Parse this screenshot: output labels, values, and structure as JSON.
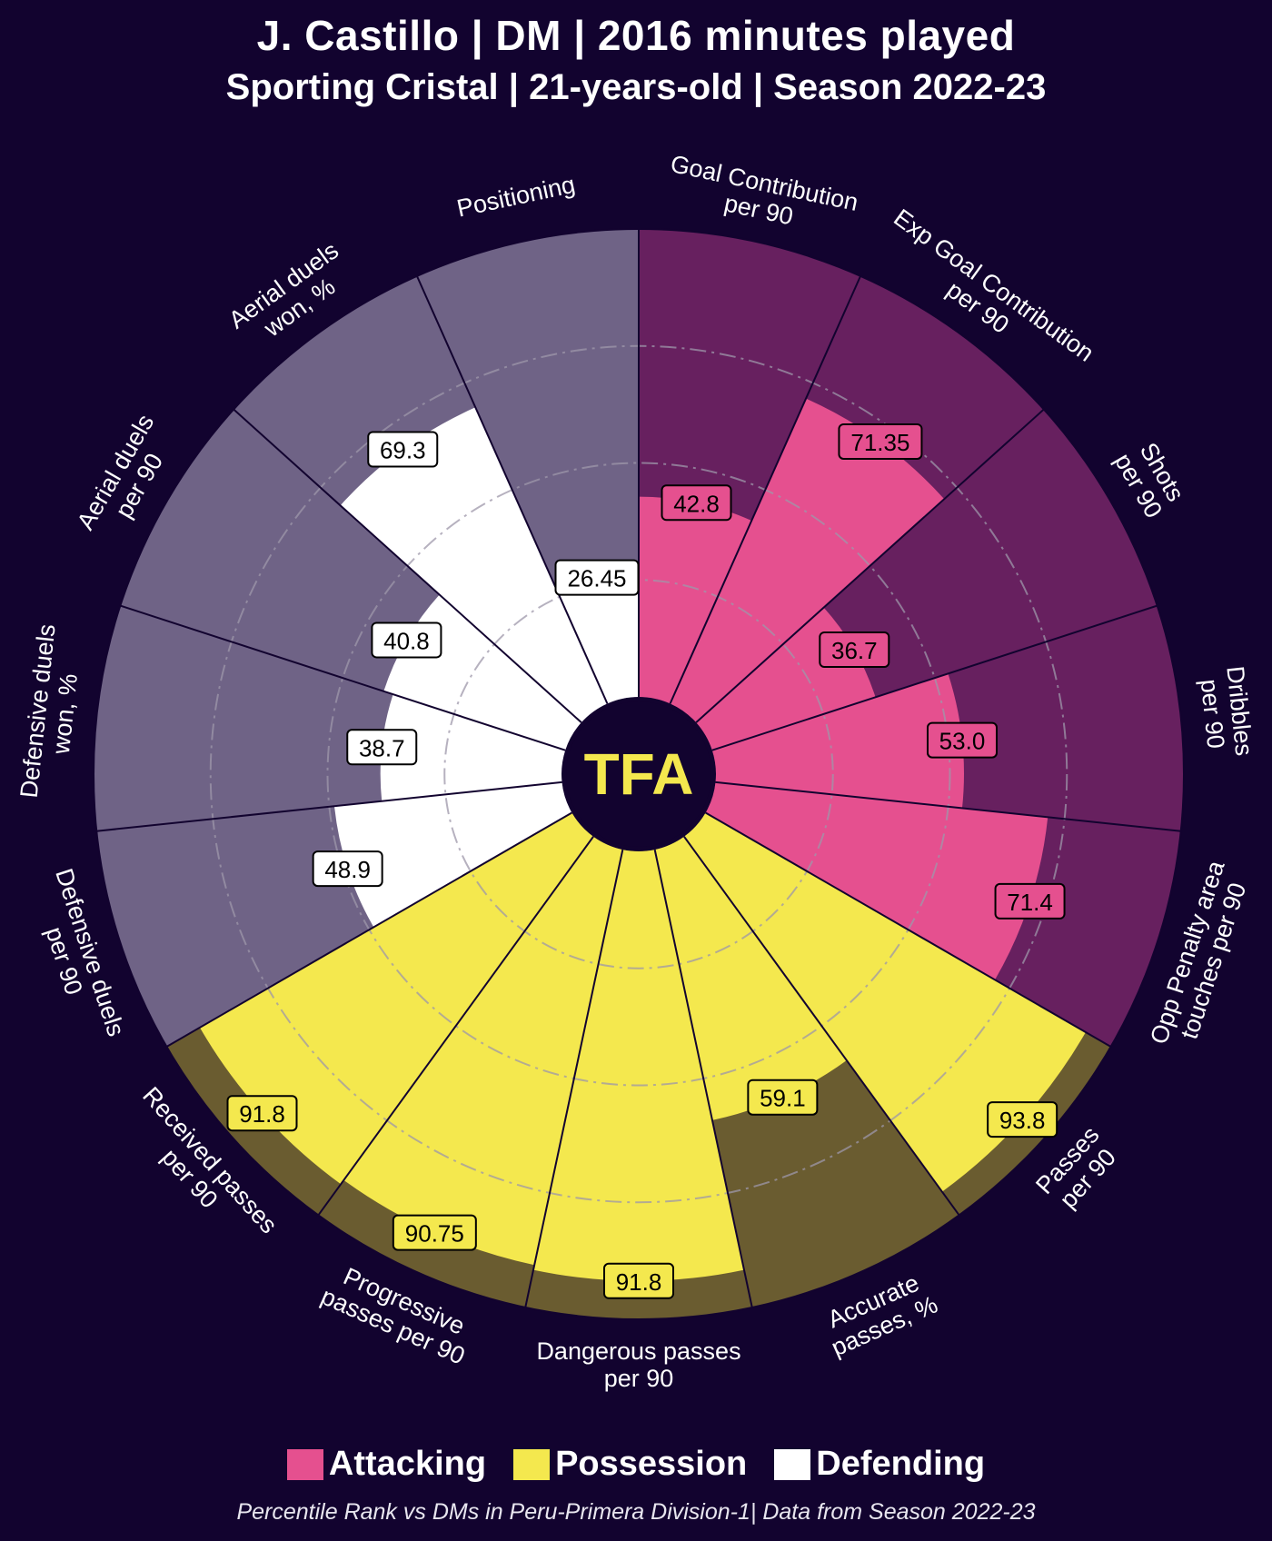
{
  "header": {
    "title": "J. Castillo | DM | 2016 minutes played",
    "subtitle": "Sporting Cristal | 21-years-old | Season 2022-23"
  },
  "logo": {
    "text": "TFA"
  },
  "legend": {
    "items": [
      {
        "label": "Attacking",
        "color": "#e5508f"
      },
      {
        "label": "Possession",
        "color": "#f4e84e"
      },
      {
        "label": "Defending",
        "color": "#ffffff"
      }
    ]
  },
  "footnote": "Percentile Rank vs DMs in Peru-Primera Division-1| Data from Season 2022-23",
  "chart_data": {
    "type": "pizza",
    "title": "J. Castillo | DM | 2016 minutes played",
    "scale": [
      0,
      100
    ],
    "gridlines": [
      25,
      50,
      75
    ],
    "categories": [
      {
        "name": "Attacking",
        "color": "#e5508f",
        "background": "#67205f"
      },
      {
        "name": "Possession",
        "color": "#f4e84e",
        "background": "#6a5c30"
      },
      {
        "name": "Defending",
        "color": "#ffffff",
        "background": "#6f6386"
      }
    ],
    "slices": [
      {
        "label": "Goal Contribution\nper 90",
        "value": 42.8,
        "display": "42.8",
        "category": "Attacking"
      },
      {
        "label": "Exp Goal Contribution\nper 90",
        "value": 71.35,
        "display": "71.35",
        "category": "Attacking"
      },
      {
        "label": "Shots\nper 90",
        "value": 36.7,
        "display": "36.7",
        "category": "Attacking"
      },
      {
        "label": "Dribbles\nper 90",
        "value": 53.0,
        "display": "53.0",
        "category": "Attacking"
      },
      {
        "label": "Opp Penalty area\ntouches per 90",
        "value": 71.4,
        "display": "71.4",
        "category": "Attacking"
      },
      {
        "label": "Passes\nper 90",
        "value": 93.8,
        "display": "93.8",
        "category": "Possession"
      },
      {
        "label": "Accurate\npasses, %",
        "value": 59.1,
        "display": "59.1",
        "category": "Possession"
      },
      {
        "label": "Dangerous passes\nper 90",
        "value": 91.8,
        "display": "91.8",
        "category": "Possession"
      },
      {
        "label": "Progressive\npasses per 90",
        "value": 90.75,
        "display": "90.75",
        "category": "Possession"
      },
      {
        "label": "Received passes\nper 90",
        "value": 91.8,
        "display": "91.8",
        "category": "Possession"
      },
      {
        "label": "Defensive duels\nper 90",
        "value": 48.9,
        "display": "48.9",
        "category": "Defending"
      },
      {
        "label": "Defensive duels\nwon, %",
        "value": 38.7,
        "display": "38.7",
        "category": "Defending"
      },
      {
        "label": "Aerial duels\nper 90",
        "value": 40.8,
        "display": "40.8",
        "category": "Defending"
      },
      {
        "label": "Aerial duels\nwon, %",
        "value": 69.3,
        "display": "69.3",
        "category": "Defending"
      },
      {
        "label": "Positioning",
        "value": 26.45,
        "display": "26.45",
        "category": "Defending"
      }
    ]
  }
}
